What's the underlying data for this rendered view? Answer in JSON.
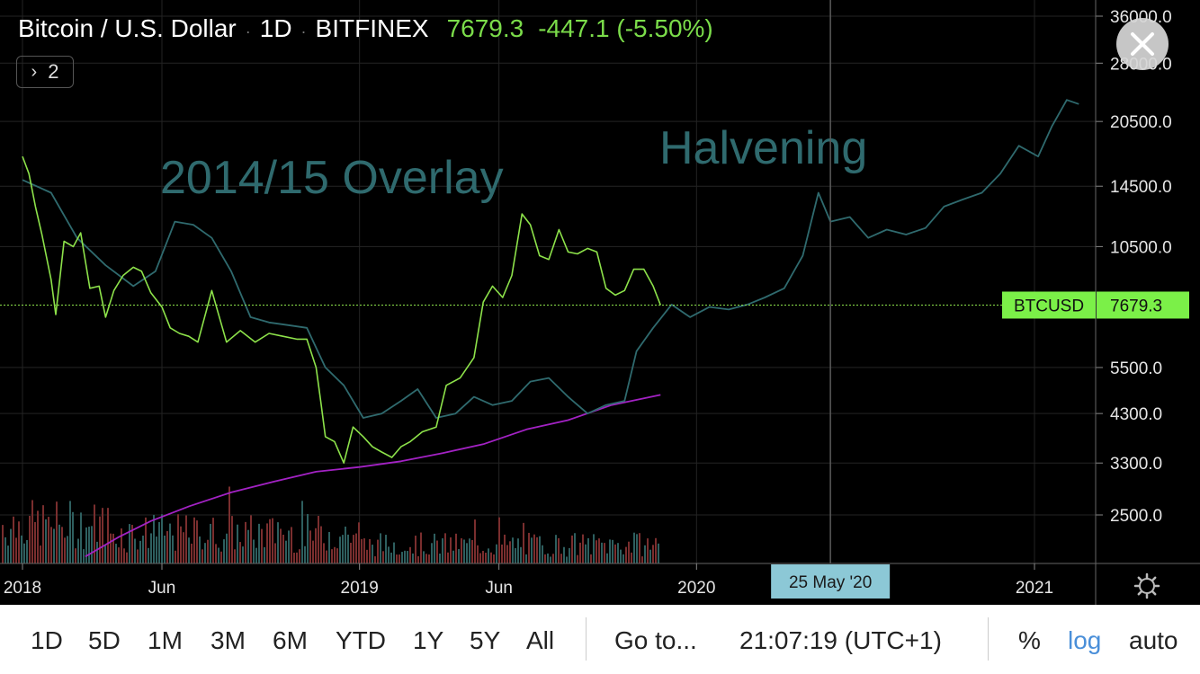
{
  "header": {
    "symbol": "Bitcoin / U.S. Dollar",
    "interval": "1D",
    "exchange": "BITFINEX",
    "last": "7679.3",
    "change": "-447.1 (-5.50%)"
  },
  "studies_button": {
    "count": "2"
  },
  "colors": {
    "price_line": "#8de24a",
    "overlay_line": "#2f6a6e",
    "ma_line": "#a322c4",
    "vol_up": "#2e5f5f",
    "vol_down": "#7a2e2e",
    "badge_bg": "#7bf048",
    "crosshair_label_bg": "#8cc8d6"
  },
  "chart_data": {
    "type": "line",
    "log_scale": true,
    "x_tick_labels": [
      "2018",
      "Jun",
      "2019",
      "Jun",
      "2020",
      "2021"
    ],
    "y_tick_labels": [
      "36000.0",
      "28000.0",
      "20500.0",
      "14500.0",
      "10500.0",
      "7679.3",
      "5500.0",
      "4300.0",
      "3300.0",
      "2500.0"
    ],
    "annotations": [
      "2014/15 Overlay",
      "Halvening"
    ],
    "price_badge": {
      "label": "BTCUSD",
      "value": "7679.3"
    },
    "crosshair_date": "25 May '20",
    "ylim": [
      2000,
      38000
    ],
    "grid": true,
    "series": [
      {
        "name": "BTCUSD",
        "role": "price",
        "x": [
          "2018-01-01",
          "2018-01-08",
          "2018-01-15",
          "2018-01-22",
          "2018-02-01",
          "2018-02-06",
          "2018-02-15",
          "2018-02-25",
          "2018-03-05",
          "2018-03-15",
          "2018-03-25",
          "2018-04-01",
          "2018-04-10",
          "2018-04-20",
          "2018-05-01",
          "2018-05-10",
          "2018-05-20",
          "2018-06-01",
          "2018-06-10",
          "2018-06-20",
          "2018-06-30",
          "2018-07-10",
          "2018-07-25",
          "2018-08-10",
          "2018-08-25",
          "2018-09-10",
          "2018-09-25",
          "2018-10-10",
          "2018-10-25",
          "2018-11-05",
          "2018-11-15",
          "2018-11-20",
          "2018-11-25",
          "2018-12-05",
          "2018-12-15",
          "2018-12-25",
          "2019-01-05",
          "2019-01-15",
          "2019-01-25",
          "2019-02-05",
          "2019-02-15",
          "2019-02-25",
          "2019-03-10",
          "2019-03-25",
          "2019-04-05",
          "2019-04-20",
          "2019-05-05",
          "2019-05-15",
          "2019-05-25",
          "2019-06-05",
          "2019-06-15",
          "2019-06-26",
          "2019-07-05",
          "2019-07-15",
          "2019-07-25",
          "2019-08-05",
          "2019-08-15",
          "2019-08-25",
          "2019-09-05",
          "2019-09-15",
          "2019-09-25",
          "2019-10-05",
          "2019-10-15",
          "2019-10-25",
          "2019-11-05",
          "2019-11-15",
          "2019-11-23"
        ],
        "y": [
          17000,
          15500,
          13000,
          11200,
          8800,
          7300,
          10800,
          10500,
          11300,
          8400,
          8500,
          7200,
          8300,
          9000,
          9400,
          9200,
          8200,
          7600,
          6800,
          6600,
          6500,
          6300,
          8300,
          6300,
          6700,
          6300,
          6600,
          6500,
          6400,
          6400,
          5500,
          4600,
          3800,
          3700,
          3300,
          4000,
          3800,
          3600,
          3500,
          3400,
          3600,
          3700,
          3900,
          4000,
          5000,
          5200,
          5800,
          7800,
          8500,
          8000,
          9000,
          12500,
          11800,
          10000,
          9800,
          11500,
          10200,
          10100,
          10400,
          10200,
          8400,
          8100,
          8300,
          9300,
          9300,
          8500,
          7679.3
        ]
      },
      {
        "name": "2014/15 Overlay",
        "role": "overlay",
        "x": [
          "2018-01-01",
          "2018-02-01",
          "2018-03-01",
          "2018-04-01",
          "2018-05-01",
          "2018-05-25",
          "2018-06-15",
          "2018-07-05",
          "2018-07-25",
          "2018-08-15",
          "2018-09-05",
          "2018-09-25",
          "2018-10-15",
          "2018-11-05",
          "2018-11-25",
          "2018-12-15",
          "2019-01-05",
          "2019-01-25",
          "2019-02-15",
          "2019-03-05",
          "2019-03-25",
          "2019-04-15",
          "2019-05-05",
          "2019-05-25",
          "2019-06-15",
          "2019-07-05",
          "2019-07-25",
          "2019-08-15",
          "2019-09-05",
          "2019-09-25",
          "2019-10-15",
          "2019-10-28",
          "2019-11-15",
          "2019-12-05",
          "2019-12-25",
          "2020-01-15",
          "2020-02-05",
          "2020-02-25",
          "2020-03-15",
          "2020-04-05",
          "2020-04-25",
          "2020-05-12",
          "2020-05-25",
          "2020-06-15",
          "2020-07-05",
          "2020-07-25",
          "2020-08-15",
          "2020-09-05",
          "2020-09-25",
          "2020-10-15",
          "2020-11-05",
          "2020-11-25",
          "2020-12-15",
          "2021-01-05",
          "2021-01-20",
          "2021-02-05",
          "2021-02-18"
        ],
        "y": [
          15000,
          14000,
          11000,
          9500,
          8500,
          9200,
          12000,
          11800,
          11000,
          9200,
          7200,
          7000,
          6900,
          6800,
          5500,
          5000,
          4200,
          4300,
          4600,
          4900,
          4200,
          4300,
          4700,
          4500,
          4600,
          5100,
          5200,
          4700,
          4300,
          4500,
          4600,
          6000,
          6800,
          7700,
          7200,
          7600,
          7500,
          7700,
          8000,
          8400,
          10000,
          14000,
          12000,
          12300,
          11000,
          11500,
          11200,
          11600,
          13000,
          13500,
          14000,
          15500,
          18000,
          17000,
          20000,
          23000,
          22500
        ]
      },
      {
        "name": "MA",
        "role": "moving-average",
        "x": [
          "2018-03-10",
          "2018-04-15",
          "2018-05-20",
          "2018-07-01",
          "2018-08-15",
          "2018-10-01",
          "2018-11-15",
          "2019-01-01",
          "2019-02-15",
          "2019-04-01",
          "2019-05-15",
          "2019-07-01",
          "2019-08-15",
          "2019-10-01",
          "2019-11-23"
        ],
        "y": [
          2000,
          2220,
          2420,
          2620,
          2820,
          2990,
          3150,
          3230,
          3330,
          3480,
          3650,
          3950,
          4150,
          4500,
          4750
        ]
      }
    ]
  },
  "time_axis": {
    "settings_icon": "gear-icon"
  },
  "toolbar": {
    "ranges": [
      "1D",
      "5D",
      "1M",
      "3M",
      "6M",
      "YTD",
      "1Y",
      "5Y",
      "All"
    ],
    "goto": "Go to...",
    "clock": "21:07:19 (UTC+1)",
    "percent": "%",
    "log": "log",
    "auto": "auto",
    "active_color": "#4a8fd9"
  }
}
